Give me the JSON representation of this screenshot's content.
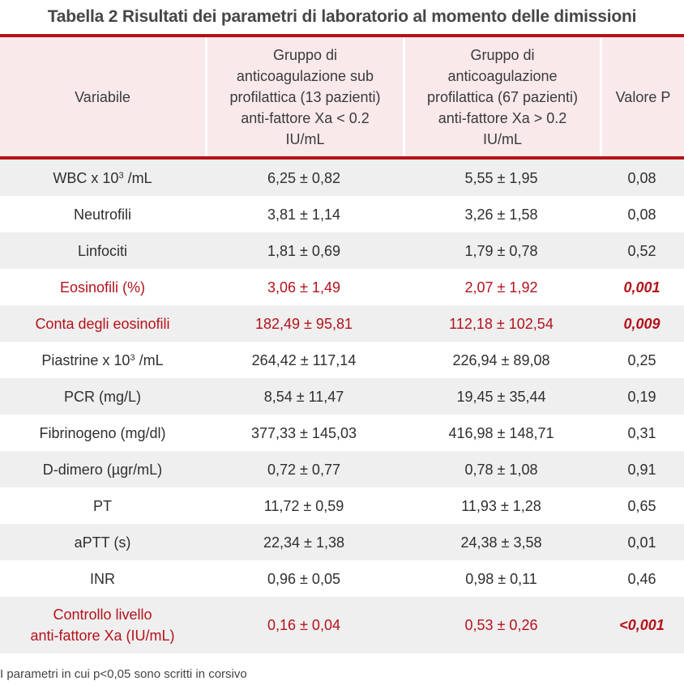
{
  "title": "Tabella 2 Risultati dei parametri di laboratorio al momento delle dimissioni",
  "colors": {
    "accent_red": "#b5121b",
    "header_bg": "#f9e9ea",
    "row_gray": "#efefef",
    "row_white": "#ffffff"
  },
  "header": {
    "col0": "Variabile",
    "col1": "Gruppo di anticoagulazione sub profilattica (13 pazienti) anti-fattore Xa < 0.2 IU/mL",
    "col2": "Gruppo di anticoagulazione profilattica (67 pazienti) anti-fattore Xa > 0.2 IU/mL",
    "col3": "Valore P"
  },
  "rows": [
    {
      "variable_pre": "WBC x 10",
      "variable_sup": "3",
      "variable_post": " /mL",
      "group1": "6,25 ± 0,82",
      "group2": "5,55 ± 1,95",
      "p": "0,08",
      "highlight": false
    },
    {
      "variable": "Neutrofili",
      "group1": "3,81 ± 1,14",
      "group2": "3,26 ± 1,58",
      "p": "0,08",
      "highlight": false
    },
    {
      "variable": "Linfociti",
      "group1": "1,81 ± 0,69",
      "group2": "1,79 ± 0,78",
      "p": "0,52",
      "highlight": false
    },
    {
      "variable": "Eosinofili (%)",
      "group1": "3,06 ± 1,49",
      "group2": "2,07 ± 1,92",
      "p": "0,001",
      "highlight": true
    },
    {
      "variable": "Conta degli eosinofili",
      "group1": "182,49 ± 95,81",
      "group2": "112,18 ± 102,54",
      "p": "0,009",
      "highlight": true
    },
    {
      "variable_pre": "Piastrine x 10",
      "variable_sup": "3",
      "variable_post": " /mL",
      "group1": "264,42 ± 117,14",
      "group2": "226,94 ± 89,08",
      "p": "0,25",
      "highlight": false
    },
    {
      "variable": "PCR (mg/L)",
      "group1": "8,54 ± 11,47",
      "group2": "19,45 ± 35,44",
      "p": "0,19",
      "highlight": false
    },
    {
      "variable": "Fibrinogeno (mg/dl)",
      "group1": "377,33 ± 145,03",
      "group2": "416,98 ± 148,71",
      "p": "0,31",
      "highlight": false
    },
    {
      "variable": "D-dimero (µgr/mL)",
      "group1": "0,72 ± 0,77",
      "group2": "0,78 ± 1,08",
      "p": "0,91",
      "highlight": false
    },
    {
      "variable": "PT",
      "group1": "11,72 ± 0,59",
      "group2": "11,93 ± 1,28",
      "p": "0,65",
      "highlight": false
    },
    {
      "variable": "aPTT (s)",
      "group1": "22,34 ± 1,38",
      "group2": "24,38 ± 3,58",
      "p": "0,01",
      "highlight": false
    },
    {
      "variable": "INR",
      "group1": "0,96 ± 0,05",
      "group2": "0,98 ± 0,11",
      "p": "0,46",
      "highlight": false
    },
    {
      "variable_line1": "Controllo livello",
      "variable_line2": "anti-fattore Xa (IU/mL)",
      "group1": "0,16 ± 0,04",
      "group2": "0,53 ± 0,26",
      "p": "<0,001",
      "highlight": true
    }
  ],
  "footnote": "I parametri in cui p<0,05 sono scritti in corsivo"
}
